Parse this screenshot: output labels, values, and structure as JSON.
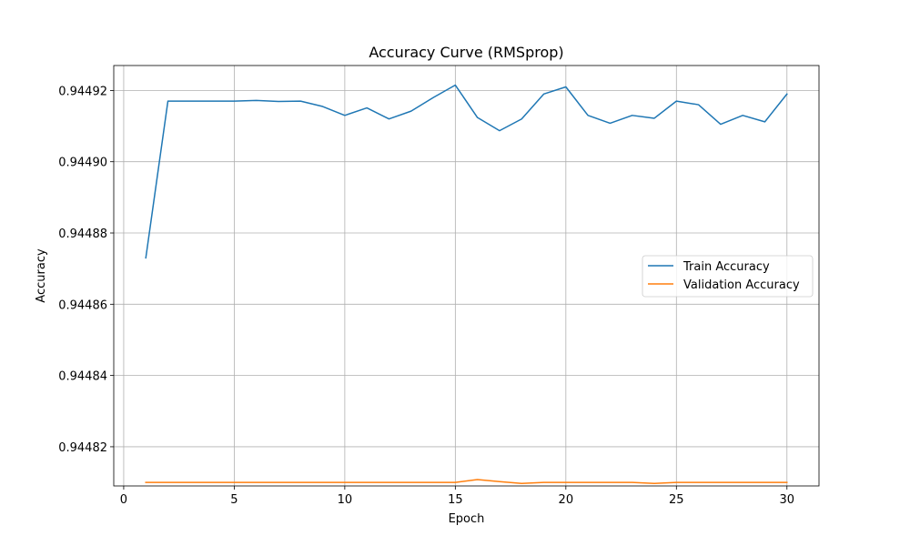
{
  "chart_data": {
    "type": "line",
    "title": "Accuracy Curve (RMSprop)",
    "xlabel": "Epoch",
    "ylabel": "Accuracy",
    "xlim": [
      -0.45,
      31.45
    ],
    "ylim": [
      0.944809,
      0.944927
    ],
    "xticks": [
      0,
      5,
      10,
      15,
      20,
      25,
      30
    ],
    "yticks": [
      0.94482,
      0.94484,
      0.94486,
      0.94488,
      0.9449,
      0.94492
    ],
    "xtick_labels": [
      "0",
      "5",
      "10",
      "15",
      "20",
      "25",
      "30"
    ],
    "ytick_labels": [
      "0.94482",
      "0.94484",
      "0.94486",
      "0.94488",
      "0.94490",
      "0.94492"
    ],
    "grid": true,
    "legend_position": "center-right",
    "x": [
      1,
      2,
      3,
      4,
      5,
      6,
      7,
      8,
      9,
      10,
      11,
      12,
      13,
      14,
      15,
      16,
      17,
      18,
      19,
      20,
      21,
      22,
      23,
      24,
      25,
      26,
      27,
      28,
      29,
      30
    ],
    "series": [
      {
        "name": "Train Accuracy",
        "color": "#1f77b4",
        "values": [
          0.944873,
          0.944917,
          0.944917,
          0.944917,
          0.944917,
          0.9449172,
          0.9449169,
          0.944917,
          0.9449155,
          0.944913,
          0.9449151,
          0.944912,
          0.9449142,
          0.944918,
          0.9449215,
          0.9449124,
          0.9449087,
          0.944912,
          0.944919,
          0.944921,
          0.944913,
          0.9449108,
          0.944913,
          0.9449122,
          0.944917,
          0.944916,
          0.9449105,
          0.944913,
          0.9449112,
          0.944919
        ]
      },
      {
        "name": "Validation Accuracy",
        "color": "#ff7f0e",
        "values": [
          0.94481,
          0.94481,
          0.94481,
          0.94481,
          0.94481,
          0.94481,
          0.94481,
          0.94481,
          0.94481,
          0.94481,
          0.94481,
          0.94481,
          0.94481,
          0.94481,
          0.94481,
          0.9448108,
          0.9448102,
          0.9448097,
          0.94481,
          0.94481,
          0.94481,
          0.94481,
          0.94481,
          0.9448097,
          0.94481,
          0.94481,
          0.94481,
          0.94481,
          0.94481,
          0.94481
        ]
      }
    ]
  }
}
